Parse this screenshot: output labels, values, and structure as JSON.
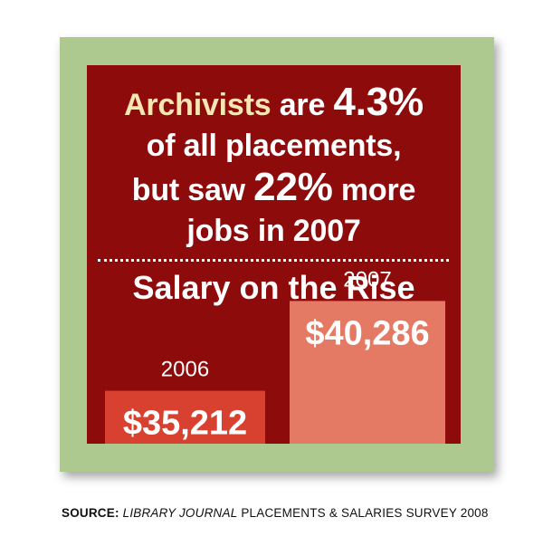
{
  "colors": {
    "frame": "#adc98f",
    "panel": "#8e0b0b",
    "gold": "#f5e6b4",
    "bar_2006": "#d8402f",
    "bar_2007": "#e57a64"
  },
  "headline": {
    "word_archivists": "Archivists",
    "text_are": " are ",
    "value_share": "4.3%",
    "line2": "of all placements,",
    "text_but_saw": "but saw ",
    "value_growth": "22%",
    "text_more": " more",
    "line4": "jobs in 2007"
  },
  "chart_data": {
    "type": "bar",
    "title": "Salary on the Rise",
    "categories": [
      "2006",
      "2007"
    ],
    "values": [
      35212,
      40286
    ],
    "value_labels": [
      "$35,212",
      "$40,286"
    ]
  },
  "source": {
    "label": "SOURCE:",
    "publication": "LIBRARY JOURNAL",
    "rest": " PLACEMENTS & SALARIES SURVEY 2008"
  }
}
